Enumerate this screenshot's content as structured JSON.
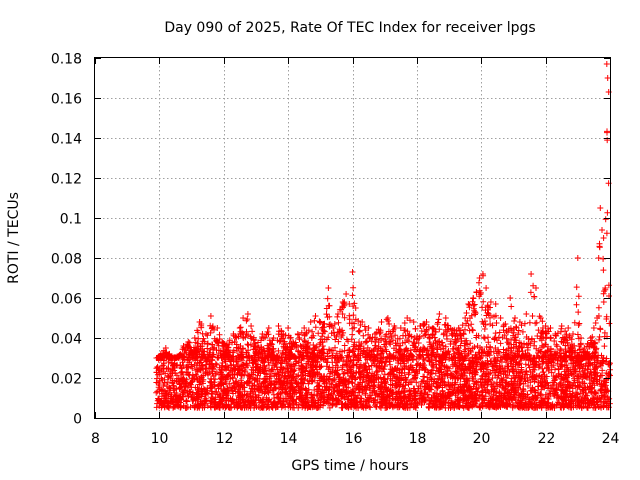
{
  "chart_data": {
    "type": "scatter",
    "title": "Day 090 of 2025, Rate Of TEC Index for receiver lpgs",
    "xlabel": "GPS time / hours",
    "ylabel": "ROTI / TECUs",
    "xlim": [
      8,
      24
    ],
    "ylim": [
      0,
      0.18
    ],
    "grid": true,
    "marker": "plus",
    "series_color": "#ff0000",
    "x_ticks": [
      8,
      10,
      12,
      14,
      16,
      18,
      20,
      22,
      24
    ],
    "x_tick_labels": [
      "8",
      "10",
      "12",
      "14",
      "16",
      "18",
      "20",
      "22",
      "24"
    ],
    "y_ticks": [
      0,
      0.02,
      0.04,
      0.06,
      0.08,
      0.1,
      0.12,
      0.14,
      0.16,
      0.18
    ],
    "y_tick_labels": [
      "0",
      "0.02",
      "0.04",
      "0.06",
      "0.08",
      "0.1",
      "0.12",
      "0.14",
      "0.16",
      "0.18"
    ],
    "series": [
      {
        "name": "ROTI",
        "x": [
          9.95,
          10.05,
          10.2,
          10.4,
          10.6,
          10.75,
          10.9,
          11.1,
          11.25,
          11.3,
          11.45,
          11.6,
          11.8,
          11.95,
          12.1,
          12.3,
          12.5,
          12.6,
          12.75,
          12.85,
          13.0,
          13.2,
          13.4,
          13.55,
          13.7,
          13.85,
          14.0,
          14.15,
          14.3,
          14.5,
          14.7,
          14.85,
          15.0,
          15.1,
          15.25,
          15.4,
          15.55,
          15.7,
          15.8,
          15.9,
          16.0,
          16.1,
          16.3,
          16.5,
          16.7,
          16.9,
          17.1,
          17.3,
          17.5,
          17.7,
          17.9,
          18.1,
          18.3,
          18.5,
          18.7,
          18.9,
          19.1,
          19.3,
          19.5,
          19.6,
          19.75,
          19.85,
          19.95,
          20.05,
          20.15,
          20.3,
          20.45,
          20.6,
          20.75,
          20.9,
          21.05,
          21.2,
          21.4,
          21.55,
          21.7,
          21.85,
          22.0,
          22.15,
          22.3,
          22.5,
          22.7,
          22.85,
          23.0,
          23.1,
          23.2,
          23.3,
          23.4,
          23.5,
          23.6,
          23.65,
          23.7,
          23.75,
          23.8,
          23.85,
          23.9,
          23.93,
          23.96
        ],
        "y": [
          0.03,
          0.032,
          0.035,
          0.03,
          0.031,
          0.036,
          0.038,
          0.04,
          0.048,
          0.047,
          0.042,
          0.051,
          0.045,
          0.038,
          0.037,
          0.042,
          0.045,
          0.05,
          0.052,
          0.046,
          0.036,
          0.042,
          0.045,
          0.04,
          0.046,
          0.042,
          0.045,
          0.038,
          0.042,
          0.045,
          0.048,
          0.051,
          0.048,
          0.047,
          0.065,
          0.045,
          0.052,
          0.058,
          0.062,
          0.057,
          0.073,
          0.055,
          0.048,
          0.045,
          0.042,
          0.048,
          0.05,
          0.046,
          0.045,
          0.05,
          0.048,
          0.046,
          0.048,
          0.045,
          0.052,
          0.05,
          0.044,
          0.045,
          0.05,
          0.057,
          0.06,
          0.063,
          0.07,
          0.072,
          0.065,
          0.058,
          0.057,
          0.05,
          0.047,
          0.06,
          0.05,
          0.048,
          0.052,
          0.072,
          0.065,
          0.05,
          0.046,
          0.045,
          0.042,
          0.046,
          0.045,
          0.042,
          0.08,
          0.04,
          0.035,
          0.037,
          0.04,
          0.045,
          0.05,
          0.08,
          0.105,
          0.094,
          0.09,
          0.065,
          0.177,
          0.17,
          0.163
        ],
        "baseline_range": [
          0.005,
          0.03
        ],
        "baseline_x_range": [
          9.9,
          24.0
        ],
        "note": "dense cloud of several thousand points; values above are the upper envelope per time slice"
      }
    ]
  }
}
